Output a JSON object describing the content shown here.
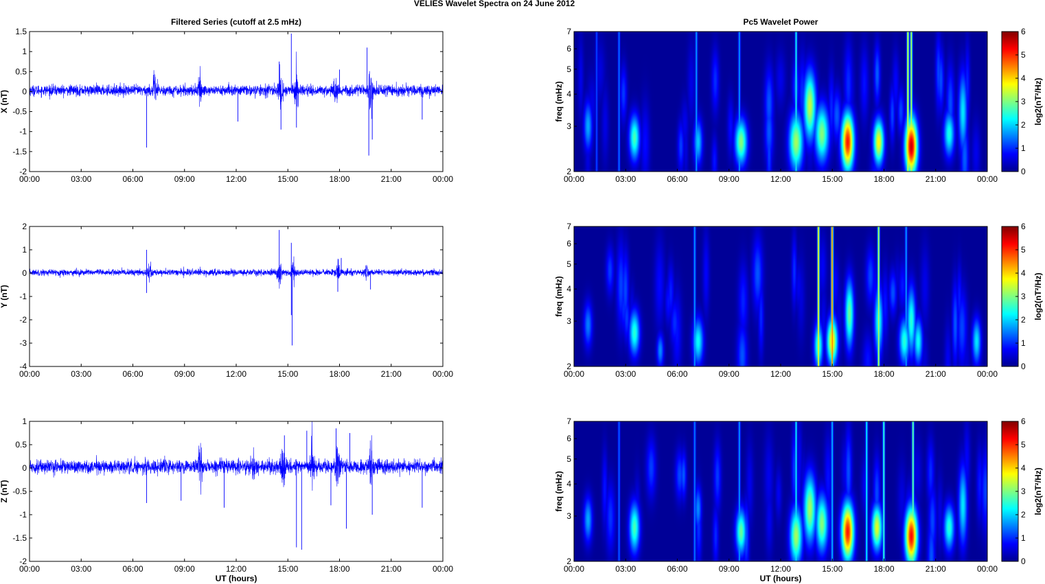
{
  "figure": {
    "suptitle": "VELIES Wavelet Spectra on 24 June      2012",
    "left_title": "Filtered Series (cutoff at 2.5 mHz)",
    "right_title": "Pc5 Wavelet Power",
    "xlabel": "UT (hours)"
  },
  "chart_data": [
    {
      "type": "line",
      "name": "X filtered series",
      "ylabel": "X (nT)",
      "xlim": [
        0,
        24
      ],
      "ylim": [
        -2,
        1.5
      ],
      "x_ticks": [
        "00:00",
        "03:00",
        "06:00",
        "09:00",
        "12:00",
        "15:00",
        "18:00",
        "21:00",
        "00:00"
      ],
      "y_ticks": [
        "-2",
        "-1.5",
        "-1",
        "-0.5",
        "0",
        "0.5",
        "1",
        "1.5"
      ],
      "y_tick_values": [
        -2,
        -1.5,
        -1,
        -0.5,
        0,
        0.5,
        1,
        1.5
      ],
      "line_color": "#0000ff",
      "noise_amplitude": 0.12,
      "bursts": [
        {
          "t": 7.3,
          "a": 0.35
        },
        {
          "t": 9.9,
          "a": 0.3
        },
        {
          "t": 14.6,
          "a": 0.45
        },
        {
          "t": 15.5,
          "a": 0.4
        },
        {
          "t": 17.8,
          "a": 0.35
        },
        {
          "t": 19.8,
          "a": 0.55
        }
      ],
      "spikes": [
        {
          "t": 6.8,
          "v": -1.4
        },
        {
          "t": 12.1,
          "v": -0.75
        },
        {
          "t": 14.5,
          "v": 0.75
        },
        {
          "t": 14.6,
          "v": -0.95
        },
        {
          "t": 15.2,
          "v": 1.45
        },
        {
          "t": 15.5,
          "v": -0.9
        },
        {
          "t": 18.0,
          "v": 0.55
        },
        {
          "t": 19.6,
          "v": 1.1
        },
        {
          "t": 19.7,
          "v": -1.6
        },
        {
          "t": 19.9,
          "v": -1.2
        },
        {
          "t": 22.8,
          "v": -0.7
        }
      ]
    },
    {
      "type": "line",
      "name": "Y filtered series",
      "ylabel": "Y (nT)",
      "xlim": [
        0,
        24
      ],
      "ylim": [
        -4,
        2
      ],
      "x_ticks": [
        "00:00",
        "03:00",
        "06:00",
        "09:00",
        "12:00",
        "15:00",
        "18:00",
        "21:00",
        "00:00"
      ],
      "y_ticks": [
        "-4",
        "-3",
        "-2",
        "-1",
        "0",
        "1",
        "2"
      ],
      "y_tick_values": [
        -4,
        -3,
        -2,
        -1,
        0,
        1,
        2
      ],
      "line_color": "#0000ff",
      "noise_amplitude": 0.12,
      "bursts": [
        {
          "t": 7.0,
          "a": 0.3
        },
        {
          "t": 14.5,
          "a": 0.4
        },
        {
          "t": 15.3,
          "a": 0.45
        },
        {
          "t": 17.9,
          "a": 0.35
        },
        {
          "t": 19.6,
          "a": 0.3
        }
      ],
      "spikes": [
        {
          "t": 6.8,
          "v": 1.0
        },
        {
          "t": 6.8,
          "v": -0.85
        },
        {
          "t": 14.5,
          "v": 1.85
        },
        {
          "t": 15.2,
          "v": 1.3
        },
        {
          "t": 15.25,
          "v": -3.1
        },
        {
          "t": 15.2,
          "v": -1.8
        },
        {
          "t": 17.9,
          "v": -0.8
        },
        {
          "t": 18.1,
          "v": 0.65
        },
        {
          "t": 19.8,
          "v": -0.7
        }
      ]
    },
    {
      "type": "line",
      "name": "Z filtered series",
      "ylabel": "Z (nT)",
      "xlim": [
        0,
        24
      ],
      "ylim": [
        -2,
        1
      ],
      "x_ticks": [
        "00:00",
        "03:00",
        "06:00",
        "09:00",
        "12:00",
        "15:00",
        "18:00",
        "21:00",
        "00:00"
      ],
      "y_ticks": [
        "-2",
        "-1.5",
        "-1",
        "-0.5",
        "0",
        "0.5",
        "1"
      ],
      "y_tick_values": [
        -2,
        -1.5,
        -1,
        -0.5,
        0,
        0.5,
        1
      ],
      "line_color": "#0000ff",
      "noise_amplitude": 0.13,
      "bursts": [
        {
          "t": 9.9,
          "a": 0.3
        },
        {
          "t": 13.0,
          "a": 0.3
        },
        {
          "t": 14.7,
          "a": 0.4
        },
        {
          "t": 16.4,
          "a": 0.45
        },
        {
          "t": 17.9,
          "a": 0.45
        },
        {
          "t": 19.8,
          "a": 0.45
        }
      ],
      "spikes": [
        {
          "t": 6.8,
          "v": -0.75
        },
        {
          "t": 8.8,
          "v": -0.7
        },
        {
          "t": 11.3,
          "v": -0.85
        },
        {
          "t": 14.8,
          "v": 0.7
        },
        {
          "t": 15.5,
          "v": -1.7
        },
        {
          "t": 15.8,
          "v": -1.75
        },
        {
          "t": 16.1,
          "v": 0.8
        },
        {
          "t": 17.5,
          "v": -0.8
        },
        {
          "t": 17.8,
          "v": 0.85
        },
        {
          "t": 18.4,
          "v": -1.3
        },
        {
          "t": 18.6,
          "v": 0.75
        },
        {
          "t": 19.9,
          "v": -1.0
        },
        {
          "t": 22.8,
          "v": -0.85
        }
      ]
    },
    {
      "type": "heatmap",
      "name": "X Pc5 wavelet power",
      "ylabel": "freq (mHz)",
      "xlim": [
        0,
        24
      ],
      "ylim": [
        2,
        7
      ],
      "y_scale": "log",
      "x_ticks": [
        "00:00",
        "03:00",
        "06:00",
        "09:00",
        "12:00",
        "15:00",
        "18:00",
        "21:00",
        "00:00"
      ],
      "y_ticks": [
        "2",
        "3",
        "4",
        "5",
        "6",
        "7"
      ],
      "y_tick_values": [
        2,
        3,
        4,
        5,
        6,
        7
      ],
      "colorbar": {
        "label": "log2(nT²/Hz)",
        "ticks": [
          "0",
          "1",
          "2",
          "3",
          "4",
          "5",
          "6"
        ],
        "range": [
          0,
          6
        ],
        "colormap": "jet"
      },
      "blobs": [
        {
          "t": 0.8,
          "f": 3.0,
          "p": 1.8,
          "w": 0.25,
          "h": 0.22
        },
        {
          "t": 3.5,
          "f": 2.7,
          "p": 2.8,
          "w": 0.3,
          "h": 0.2
        },
        {
          "t": 7.2,
          "f": 2.6,
          "p": 2.0,
          "w": 0.25,
          "h": 0.2
        },
        {
          "t": 9.7,
          "f": 2.6,
          "p": 3.2,
          "w": 0.35,
          "h": 0.2
        },
        {
          "t": 12.9,
          "f": 2.6,
          "p": 3.4,
          "w": 0.4,
          "h": 0.25
        },
        {
          "t": 13.7,
          "f": 3.6,
          "p": 3.6,
          "w": 0.35,
          "h": 0.3
        },
        {
          "t": 14.4,
          "f": 2.8,
          "p": 3.2,
          "w": 0.4,
          "h": 0.25
        },
        {
          "t": 15.9,
          "f": 2.6,
          "p": 5.5,
          "w": 0.35,
          "h": 0.25
        },
        {
          "t": 17.7,
          "f": 2.6,
          "p": 4.0,
          "w": 0.3,
          "h": 0.2
        },
        {
          "t": 19.6,
          "f": 2.5,
          "p": 6.0,
          "w": 0.35,
          "h": 0.25
        },
        {
          "t": 21.8,
          "f": 2.8,
          "p": 2.5,
          "w": 0.3,
          "h": 0.2
        },
        {
          "t": 22.6,
          "f": 3.4,
          "p": 2.2,
          "w": 0.25,
          "h": 0.35
        }
      ],
      "streaks": [
        {
          "t": 1.3,
          "p": 1.2
        },
        {
          "t": 2.6,
          "p": 1.5
        },
        {
          "t": 7.1,
          "p": 1.8
        },
        {
          "t": 9.6,
          "p": 1.8
        },
        {
          "t": 12.9,
          "p": 2.5
        },
        {
          "t": 19.4,
          "p": 4.0
        },
        {
          "t": 19.6,
          "p": 3.8
        }
      ]
    },
    {
      "type": "heatmap",
      "name": "Y Pc5 wavelet power",
      "ylabel": "freq (mHz)",
      "xlim": [
        0,
        24
      ],
      "ylim": [
        2,
        7
      ],
      "y_scale": "log",
      "x_ticks": [
        "00:00",
        "03:00",
        "06:00",
        "09:00",
        "12:00",
        "15:00",
        "18:00",
        "21:00",
        "00:00"
      ],
      "y_ticks": [
        "2",
        "3",
        "4",
        "5",
        "6",
        "7"
      ],
      "y_tick_values": [
        2,
        3,
        4,
        5,
        6,
        7
      ],
      "colorbar": {
        "label": "log2(nT²/Hz)",
        "ticks": [
          "0",
          "1",
          "2",
          "3",
          "4",
          "5",
          "6"
        ],
        "range": [
          0,
          6
        ],
        "colormap": "jet"
      },
      "blobs": [
        {
          "t": 0.8,
          "f": 2.9,
          "p": 1.5,
          "w": 0.25,
          "h": 0.2
        },
        {
          "t": 3.5,
          "f": 2.7,
          "p": 2.6,
          "w": 0.3,
          "h": 0.2
        },
        {
          "t": 5.0,
          "f": 2.3,
          "p": 1.6,
          "w": 0.2,
          "h": 0.15
        },
        {
          "t": 7.2,
          "f": 2.5,
          "p": 2.4,
          "w": 0.3,
          "h": 0.2
        },
        {
          "t": 14.2,
          "f": 2.4,
          "p": 2.8,
          "w": 0.25,
          "h": 0.2
        },
        {
          "t": 15.0,
          "f": 2.5,
          "p": 4.2,
          "w": 0.3,
          "h": 0.2
        },
        {
          "t": 16.0,
          "f": 3.2,
          "p": 3.0,
          "w": 0.25,
          "h": 0.3
        },
        {
          "t": 17.7,
          "f": 3.0,
          "p": 2.5,
          "w": 0.25,
          "h": 0.3
        },
        {
          "t": 19.2,
          "f": 2.5,
          "p": 2.6,
          "w": 0.3,
          "h": 0.2
        },
        {
          "t": 19.6,
          "f": 3.0,
          "p": 2.6,
          "w": 0.25,
          "h": 0.3
        },
        {
          "t": 20.0,
          "f": 2.5,
          "p": 2.4,
          "w": 0.25,
          "h": 0.2
        },
        {
          "t": 23.4,
          "f": 2.5,
          "p": 2.2,
          "w": 0.25,
          "h": 0.2
        }
      ],
      "streaks": [
        {
          "t": 7.0,
          "p": 1.8
        },
        {
          "t": 14.2,
          "p": 4.2
        },
        {
          "t": 15.0,
          "p": 5.2
        },
        {
          "t": 17.7,
          "p": 3.8
        },
        {
          "t": 19.3,
          "p": 1.8
        }
      ]
    },
    {
      "type": "heatmap",
      "name": "Z Pc5 wavelet power",
      "ylabel": "freq (mHz)",
      "xlim": [
        0,
        24
      ],
      "ylim": [
        2,
        7
      ],
      "y_scale": "log",
      "x_ticks": [
        "00:00",
        "03:00",
        "06:00",
        "09:00",
        "12:00",
        "15:00",
        "18:00",
        "21:00",
        "00:00"
      ],
      "y_ticks": [
        "2",
        "3",
        "4",
        "5",
        "6",
        "7"
      ],
      "y_tick_values": [
        2,
        3,
        4,
        5,
        6,
        7
      ],
      "colorbar": {
        "label": "log2(nT²/Hz)",
        "ticks": [
          "0",
          "1",
          "2",
          "3",
          "4",
          "5",
          "6"
        ],
        "range": [
          0,
          6
        ],
        "colormap": "jet"
      },
      "blobs": [
        {
          "t": 0.8,
          "f": 2.9,
          "p": 1.8,
          "w": 0.25,
          "h": 0.2
        },
        {
          "t": 3.5,
          "f": 2.7,
          "p": 2.8,
          "w": 0.3,
          "h": 0.22
        },
        {
          "t": 7.2,
          "f": 3.2,
          "p": 1.6,
          "w": 0.2,
          "h": 0.2
        },
        {
          "t": 9.7,
          "f": 2.6,
          "p": 3.0,
          "w": 0.3,
          "h": 0.2
        },
        {
          "t": 12.9,
          "f": 2.5,
          "p": 3.4,
          "w": 0.35,
          "h": 0.25
        },
        {
          "t": 13.7,
          "f": 3.2,
          "p": 3.4,
          "w": 0.35,
          "h": 0.3
        },
        {
          "t": 14.4,
          "f": 2.8,
          "p": 3.2,
          "w": 0.35,
          "h": 0.25
        },
        {
          "t": 15.9,
          "f": 2.6,
          "p": 5.5,
          "w": 0.35,
          "h": 0.25
        },
        {
          "t": 17.6,
          "f": 2.7,
          "p": 3.8,
          "w": 0.3,
          "h": 0.2
        },
        {
          "t": 19.6,
          "f": 2.5,
          "p": 5.6,
          "w": 0.35,
          "h": 0.25
        },
        {
          "t": 21.8,
          "f": 2.7,
          "p": 2.6,
          "w": 0.3,
          "h": 0.2
        },
        {
          "t": 22.6,
          "f": 3.3,
          "p": 2.2,
          "w": 0.25,
          "h": 0.35
        }
      ],
      "streaks": [
        {
          "t": 2.6,
          "p": 1.4
        },
        {
          "t": 7.0,
          "p": 1.6
        },
        {
          "t": 9.6,
          "p": 1.8
        },
        {
          "t": 12.9,
          "p": 2.4
        },
        {
          "t": 15.0,
          "p": 2.0
        },
        {
          "t": 17.0,
          "p": 2.4
        },
        {
          "t": 18.0,
          "p": 2.8
        },
        {
          "t": 19.7,
          "p": 3.2
        }
      ]
    }
  ]
}
